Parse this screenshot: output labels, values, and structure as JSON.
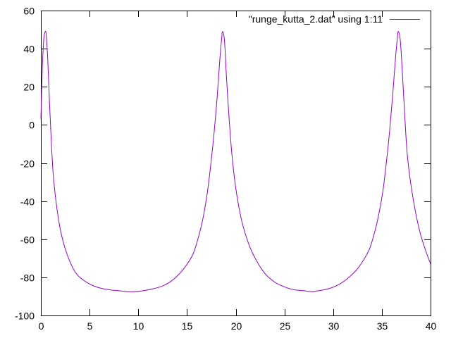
{
  "chart_data": {
    "type": "line",
    "title": "",
    "xlabel": "",
    "ylabel": "",
    "xlim": [
      0,
      40
    ],
    "ylim": [
      -100,
      60
    ],
    "x_ticks": [
      0,
      5,
      10,
      15,
      20,
      25,
      30,
      35,
      40
    ],
    "y_ticks": [
      -100,
      -80,
      -60,
      -40,
      -20,
      0,
      20,
      40,
      60
    ],
    "x_tick_labels": [
      "0",
      "5",
      "10",
      "15",
      "20",
      "25",
      "30",
      "35",
      "40"
    ],
    "y_tick_labels": [
      "-100",
      "-80",
      "-60",
      "-40",
      "-20",
      "0",
      "20",
      "40",
      "60"
    ],
    "grid": false,
    "legend_position": "top-right",
    "series": [
      {
        "name": "\"runge_kutta_2.dat\" using 1:11",
        "color": "#9400d3",
        "x": [
          0,
          0.15,
          0.3,
          0.45,
          0.55,
          0.7,
          0.9,
          1.1,
          1.3,
          1.6,
          2.0,
          2.5,
          3.0,
          3.5,
          4.0,
          5.0,
          6.0,
          7.0,
          8.0,
          9.0,
          9.6,
          10.5,
          11.5,
          12.5,
          13.5,
          14.5,
          15.5,
          16.0,
          16.6,
          17.1,
          17.5,
          17.8,
          18.1,
          18.35,
          18.55,
          18.65,
          18.85,
          19.05,
          19.3,
          19.6,
          20.0,
          20.6,
          21.3,
          22.0,
          23.0,
          24.0,
          25.0,
          26.0,
          27.0,
          27.7,
          28.5,
          29.5,
          30.5,
          31.5,
          32.5,
          33.5,
          34.0,
          34.6,
          35.1,
          35.5,
          35.8,
          36.1,
          36.4,
          36.6,
          36.7,
          36.9,
          37.1,
          37.35,
          37.6,
          38.0,
          38.5,
          39.0,
          39.5,
          40.0
        ],
        "y": [
          3,
          30,
          45,
          49,
          47,
          35,
          10,
          -12,
          -28,
          -42,
          -55,
          -65,
          -72,
          -77,
          -80,
          -83.5,
          -85.5,
          -86.5,
          -87,
          -87.5,
          -87.5,
          -87,
          -86,
          -84.5,
          -81.5,
          -76.5,
          -69,
          -62,
          -50,
          -35,
          -18,
          -3,
          15,
          33,
          45,
          49,
          44,
          25,
          5,
          -15,
          -33,
          -50,
          -62,
          -70,
          -78,
          -82.5,
          -85,
          -86.5,
          -87,
          -87.5,
          -87,
          -86,
          -84,
          -80.5,
          -75.5,
          -67.5,
          -61,
          -49,
          -35,
          -18,
          -3,
          15,
          35,
          46,
          49,
          44,
          28,
          5,
          -15,
          -32,
          -47,
          -58,
          -66,
          -73
        ]
      }
    ]
  }
}
